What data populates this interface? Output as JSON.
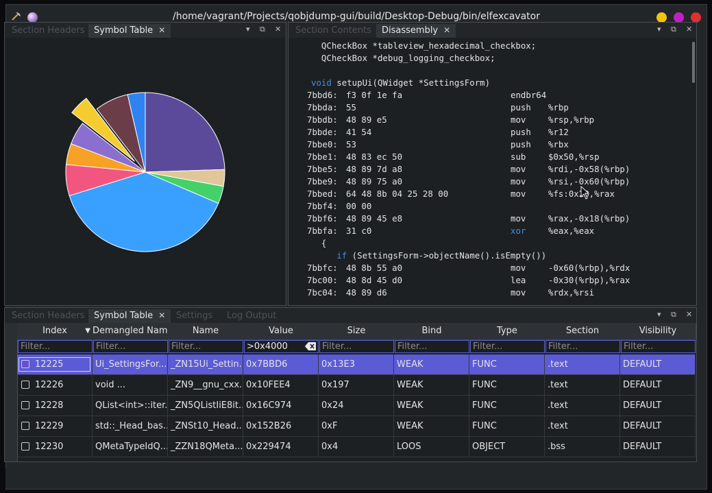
{
  "window": {
    "title": "/home/vagrant/Projects/qobjdump-gui/build/Desktop-Debug/bin/elfexcavator",
    "colors": {
      "minimize": "#f4c20d",
      "maximize": "#c21fc9",
      "close": "#e0302f"
    }
  },
  "top_left_pane": {
    "tabs": [
      {
        "label": "Section Headers",
        "active": false
      },
      {
        "label": "Symbol Table",
        "active": true,
        "close": "✕"
      }
    ]
  },
  "chart_data": {
    "type": "pie",
    "start_angle_deg": 0,
    "slices": [
      {
        "value": 24.0,
        "color": "#5b4a9a",
        "exploded": false
      },
      {
        "value": 3.3,
        "color": "#e1c699",
        "exploded": false
      },
      {
        "value": 3.5,
        "color": "#44d16a",
        "exploded": false
      },
      {
        "value": 38.0,
        "color": "#3aa0ff",
        "exploded": false
      },
      {
        "value": 6.2,
        "color": "#f25680",
        "exploded": false
      },
      {
        "value": 4.2,
        "color": "#f7a126",
        "exploded": false
      },
      {
        "value": 4.6,
        "color": "#8a6fd0",
        "exploded": false
      },
      {
        "value": 4.0,
        "color": "#f5cc30",
        "exploded": true
      },
      {
        "value": 6.7,
        "color": "#6b3d49",
        "exploded": false
      },
      {
        "value": 3.5,
        "color": "#2f83f0",
        "exploded": false
      }
    ]
  },
  "top_right_pane": {
    "tabs": [
      {
        "label": "Section Contents",
        "active": false
      },
      {
        "label": "Disassembly",
        "active": true,
        "close": "✕"
      }
    ]
  },
  "disassembly": {
    "partial_top": "  QCheckBox *tableview_hexadecimal_checkbox;",
    "lines": [
      {
        "kind": "src",
        "text": "  QCheckBox *tableview_hexadecimal_checkbox;"
      },
      {
        "kind": "src",
        "text": "  QCheckBox *debug_logging_checkbox;"
      },
      {
        "kind": "blank",
        "text": ""
      },
      {
        "kind": "src_kw",
        "kw": "void",
        "text": " setupUi(QWidget *SettingsForm)"
      },
      {
        "kind": "asm",
        "addr": "7bbd6:",
        "bytes": "f3 0f 1e fa",
        "mnem": "endbr64",
        "ops": ""
      },
      {
        "kind": "asm",
        "addr": "7bbda:",
        "bytes": "55",
        "mnem": "push",
        "ops": "%rbp"
      },
      {
        "kind": "asm",
        "addr": "7bbdb:",
        "bytes": "48 89 e5",
        "mnem": "mov",
        "ops": "%rsp,%rbp"
      },
      {
        "kind": "asm",
        "addr": "7bbde:",
        "bytes": "41 54",
        "mnem": "push",
        "ops": "%r12"
      },
      {
        "kind": "asm",
        "addr": "7bbe0:",
        "bytes": "53",
        "mnem": "push",
        "ops": "%rbx"
      },
      {
        "kind": "asm",
        "addr": "7bbe1:",
        "bytes": "48 83 ec 50",
        "mnem": "sub",
        "ops": "$0x50,%rsp"
      },
      {
        "kind": "asm",
        "addr": "7bbe5:",
        "bytes": "48 89 7d a8",
        "mnem": "mov",
        "ops": "%rdi,-0x58(%rbp)"
      },
      {
        "kind": "asm",
        "addr": "7bbe9:",
        "bytes": "48 89 75 a0",
        "mnem": "mov",
        "ops": "%rsi,-0x60(%rbp)"
      },
      {
        "kind": "asm",
        "addr": "7bbed:",
        "bytes": "64 48 8b 04 25 28 00",
        "mnem": "mov",
        "ops": "%fs:0x28,%rax"
      },
      {
        "kind": "asm",
        "addr": "7bbf4:",
        "bytes": "00 00",
        "mnem": "",
        "ops": ""
      },
      {
        "kind": "asm",
        "addr": "7bbf6:",
        "bytes": "48 89 45 e8",
        "mnem": "mov",
        "ops": "%rax,-0x18(%rbp)"
      },
      {
        "kind": "asm_kw",
        "addr": "7bbfa:",
        "bytes": "31 c0",
        "mnem": "xor",
        "ops": "%eax,%eax"
      },
      {
        "kind": "src",
        "text": "  {"
      },
      {
        "kind": "src_kw",
        "kw": "     if",
        "text": " (SettingsForm->objectName().isEmpty())"
      },
      {
        "kind": "asm",
        "addr": "7bbfc:",
        "bytes": "48 8b 55 a0",
        "mnem": "mov",
        "ops": "-0x60(%rbp),%rdx"
      },
      {
        "kind": "asm",
        "addr": "7bc00:",
        "bytes": "48 8d 45 d0",
        "mnem": "lea",
        "ops": "-0x30(%rbp),%rax"
      },
      {
        "kind": "asm",
        "addr": "7bc04:",
        "bytes": "48 89 d6",
        "mnem": "mov",
        "ops": "%rdx,%rsi"
      }
    ]
  },
  "bottom_pane": {
    "tabs": [
      {
        "label": "Section Headers",
        "active": false
      },
      {
        "label": "Symbol Table",
        "active": true,
        "close": "✕"
      },
      {
        "label": "Settings",
        "active": false
      },
      {
        "label": "Log Output",
        "active": false
      }
    ]
  },
  "symbol_table": {
    "columns": [
      "Index",
      "Demangled Name",
      "Name",
      "Value",
      "Size",
      "Bind",
      "Type",
      "Section",
      "Visibility"
    ],
    "sort_indicator": "▼",
    "filter_placeholder": "Filter...",
    "value_filter": ">0x4000",
    "rows": [
      {
        "index": "12225",
        "demangled": "Ui_SettingsFor...",
        "name": "_ZN15Ui_Settin...",
        "value": "0x7BBD6",
        "size": "0x13E3",
        "bind": "WEAK",
        "type": "FUNC",
        "section": ".text",
        "visibility": "DEFAULT",
        "selected": true
      },
      {
        "index": "12226",
        "demangled": "void ...",
        "name": "_ZN9__gnu_cxx...",
        "value": "0x10FEE4",
        "size": "0x197",
        "bind": "WEAK",
        "type": "FUNC",
        "section": ".text",
        "visibility": "DEFAULT",
        "selected": false
      },
      {
        "index": "12228",
        "demangled": "QList<int>::iter...",
        "name": "_ZN5QListIiE8it...",
        "value": "0x16C974",
        "size": "0x24",
        "bind": "WEAK",
        "type": "FUNC",
        "section": ".text",
        "visibility": "DEFAULT",
        "selected": false
      },
      {
        "index": "12229",
        "demangled": "std::_Head_bas...",
        "name": "_ZNSt10_Head...",
        "value": "0x152B26",
        "size": "0xF",
        "bind": "WEAK",
        "type": "FUNC",
        "section": ".text",
        "visibility": "DEFAULT",
        "selected": false
      },
      {
        "index": "12230",
        "demangled": "QMetaTypeIdQ...",
        "name": "_ZZN18QMeta...",
        "value": "0x229474",
        "size": "0x4",
        "bind": "LOOS",
        "type": "OBJECT",
        "section": ".bss",
        "visibility": "DEFAULT",
        "selected": false
      }
    ]
  },
  "pane_controls": {
    "menu": "▾",
    "float": "⧉",
    "close": "✕"
  }
}
